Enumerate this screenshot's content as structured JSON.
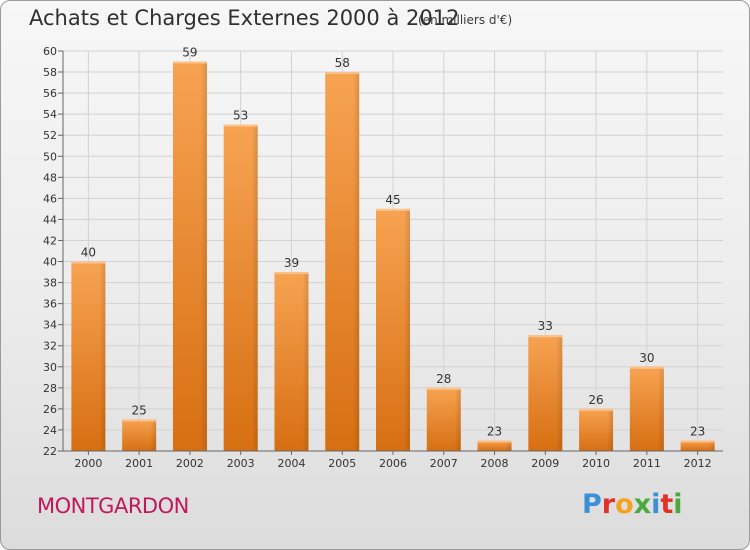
{
  "header": {
    "title": "Achats et Charges Externes 2000 à 2012",
    "subtitle": "(en milliers d'€)"
  },
  "footer": {
    "commune": "MONTGARDON",
    "logo_letters": [
      {
        "ch": "P",
        "color": "#3a8fd6"
      },
      {
        "ch": "r",
        "color": "#e0312b"
      },
      {
        "ch": "o",
        "color": "#f2a321"
      },
      {
        "ch": "x",
        "color": "#4aa83f"
      },
      {
        "ch": "i",
        "color": "#3a8fd6"
      },
      {
        "ch": "t",
        "color": "#e0312b"
      },
      {
        "ch": "i",
        "color": "#4aa83f"
      }
    ]
  },
  "chart_data": {
    "type": "bar",
    "title": "Achats et Charges Externes 2000 à 2012",
    "subtitle": "(en milliers d'€)",
    "categories": [
      "2000",
      "2001",
      "2002",
      "2003",
      "2004",
      "2005",
      "2006",
      "2007",
      "2008",
      "2009",
      "2010",
      "2011",
      "2012"
    ],
    "values": [
      40,
      25,
      59,
      53,
      39,
      58,
      45,
      28,
      23,
      33,
      26,
      30,
      23
    ],
    "ylim": [
      22,
      60
    ],
    "yticks": [
      22,
      24,
      26,
      28,
      30,
      32,
      34,
      36,
      38,
      40,
      42,
      44,
      46,
      48,
      50,
      52,
      54,
      56,
      58,
      60
    ],
    "grid": true,
    "bar_color": "#e8852f"
  }
}
